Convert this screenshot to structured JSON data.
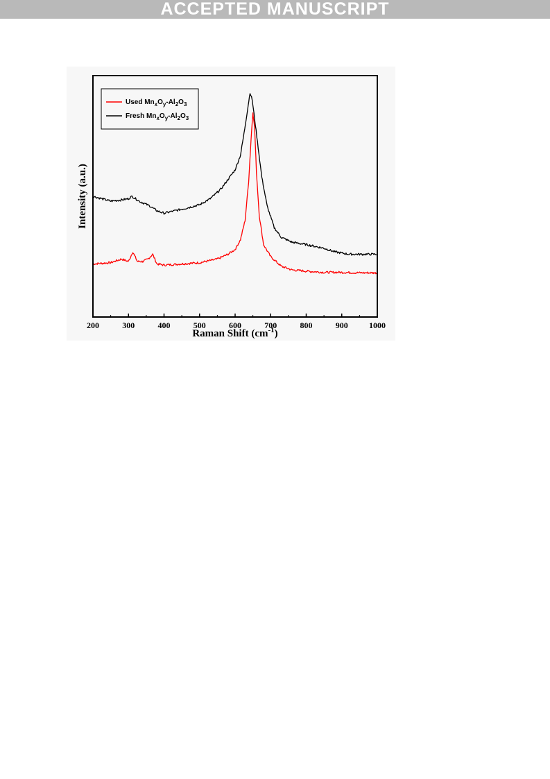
{
  "banner": {
    "text": "ACCEPTED MANUSCRIPT"
  },
  "chart_data": {
    "type": "line",
    "xlabel": "Raman Shift (cm-1)",
    "xlabel_parts": {
      "main": "Raman Shift (cm",
      "sup": "-1",
      "close": ")"
    },
    "ylabel": "Intensity (a.u.)",
    "xlim": [
      200,
      1000
    ],
    "ylim": [
      0,
      100
    ],
    "xticks": [
      200,
      300,
      400,
      500,
      600,
      700,
      800,
      900,
      1000
    ],
    "yticks_shown": false,
    "grid": false,
    "legend_position": "top-left",
    "series": [
      {
        "name": "Used MnxOy-Al2O3",
        "name_parts": [
          "Used Mn",
          "x",
          "O",
          "y",
          "-Al",
          "2",
          "O",
          "3"
        ],
        "color": "#ff0000",
        "x": [
          200,
          250,
          280,
          300,
          312,
          325,
          340,
          355,
          368,
          380,
          400,
          450,
          500,
          550,
          580,
          600,
          615,
          628,
          638,
          645,
          650,
          655,
          660,
          668,
          680,
          700,
          730,
          760,
          800,
          850,
          900,
          950,
          1000
        ],
        "y": [
          22,
          22.5,
          24,
          23,
          27,
          23,
          23,
          24,
          26,
          22,
          21.5,
          22,
          22.5,
          24,
          26,
          28,
          32,
          40,
          56,
          74,
          85,
          78,
          60,
          42,
          30,
          25,
          21,
          19.5,
          19,
          18.5,
          18.5,
          18.3,
          18.3
        ]
      },
      {
        "name": "Fresh MnxOy-Al2O3",
        "name_parts": [
          "Fresh Mn",
          "x",
          "O",
          "y",
          "-Al",
          "2",
          "O",
          "3"
        ],
        "color": "#000000",
        "x": [
          200,
          250,
          280,
          300,
          310,
          330,
          360,
          380,
          400,
          430,
          460,
          500,
          530,
          560,
          580,
          600,
          615,
          625,
          635,
          642,
          648,
          655,
          665,
          675,
          690,
          710,
          730,
          760,
          800,
          850,
          880,
          920,
          950,
          1000
        ],
        "y": [
          50,
          48,
          48.5,
          49,
          50,
          48,
          46,
          44,
          43,
          44,
          45,
          46.5,
          49,
          53,
          57,
          61,
          67,
          76,
          86,
          93,
          90,
          82,
          70,
          58,
          46,
          37,
          33,
          31,
          30,
          28.5,
          27,
          26,
          26,
          26
        ]
      }
    ]
  }
}
